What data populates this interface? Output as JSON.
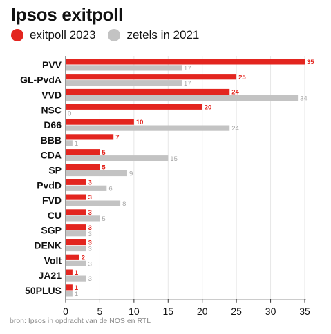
{
  "title": "Ipsos exitpoll",
  "source": "bron: Ipsos in opdracht van de NOS en RTL",
  "colors": {
    "exitpoll": "#e3251f",
    "zetels": "#c3c3c3",
    "axis": "#333333",
    "grid": "#e6e6e6"
  },
  "chart_data": {
    "type": "bar",
    "orientation": "horizontal",
    "title": "Ipsos exitpoll",
    "categories": [
      "PVV",
      "GL-PvdA",
      "VVD",
      "NSC",
      "D66",
      "BBB",
      "CDA",
      "SP",
      "PvdD",
      "FVD",
      "CU",
      "SGP",
      "DENK",
      "Volt",
      "JA21",
      "50PLUS"
    ],
    "series": [
      {
        "name": "exitpoll 2023",
        "color": "#e3251f",
        "values": [
          35,
          25,
          24,
          20,
          10,
          7,
          5,
          5,
          3,
          3,
          3,
          3,
          3,
          2,
          1,
          1
        ]
      },
      {
        "name": "zetels in 2021",
        "color": "#c3c3c3",
        "values": [
          17,
          17,
          34,
          0,
          24,
          1,
          15,
          9,
          6,
          8,
          5,
          3,
          3,
          3,
          3,
          1
        ]
      }
    ],
    "xlim": [
      0,
      35
    ],
    "xticks": [
      0,
      5,
      10,
      15,
      20,
      25,
      30,
      35
    ],
    "grid": true,
    "legend": "top-left",
    "data_labels": true
  }
}
